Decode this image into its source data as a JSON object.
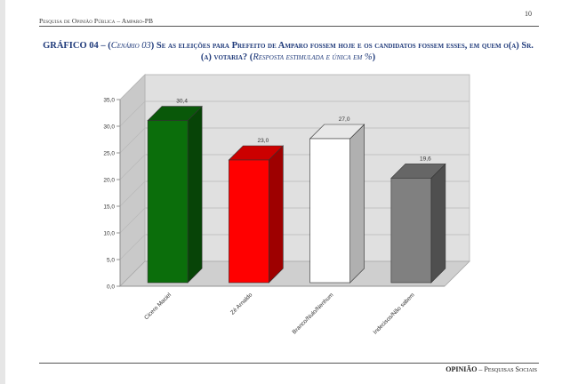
{
  "header": {
    "running_title": "Pesquisa de Opinião Pública – Amparo-PB",
    "page_number": "10"
  },
  "title": {
    "prefix": "GRÁFICO 04 – (",
    "scenario": "Cenário 03",
    "question": ") Se as eleições para Prefeito de Amparo fossem hoje e os candidatos fossem esses, em quem o(a) Sr.(a) votaria? (",
    "note": "Resposta estimulada e única em %",
    "suffix": ")"
  },
  "footer": {
    "brand": "OPINIÃO",
    "rest": " – Pesquisas Sociais"
  },
  "chart_data": {
    "type": "bar",
    "categories": [
      "Cicero Maciel",
      "Zé Arnaldo",
      "Branco/Nulo/Nenhum",
      "Indecisos/Não sabem"
    ],
    "values": [
      30.4,
      23.0,
      27.0,
      19.6
    ],
    "value_labels": [
      "30,4",
      "23,0",
      "27,0",
      "19,6"
    ],
    "bar_colors": [
      "#0b6e0b",
      "#ff0000",
      "#ffffff",
      "#808080"
    ],
    "yticks": [
      "0,0",
      "5,0",
      "10,0",
      "15,0",
      "20,0",
      "25,0",
      "30,0",
      "35,0"
    ],
    "ylim": [
      0,
      35
    ],
    "grid": true,
    "style": "3d"
  }
}
